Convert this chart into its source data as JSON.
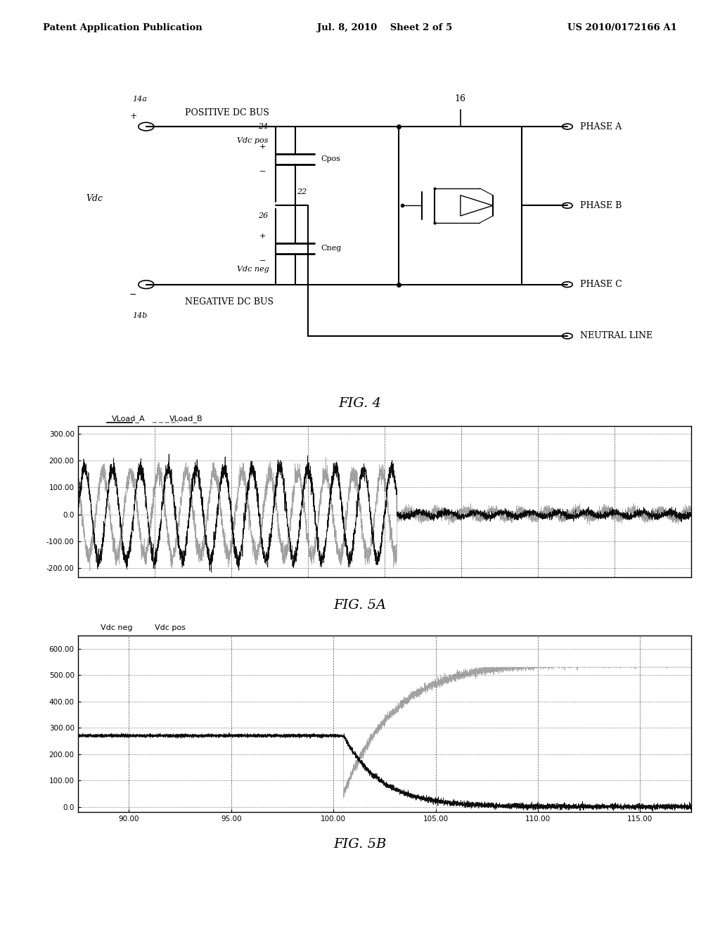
{
  "page_title_left": "Patent Application Publication",
  "page_title_center": "Jul. 8, 2010    Sheet 2 of 5",
  "page_title_right": "US 2010/0172166 A1",
  "fig4_title": "FIG. 4",
  "fig5a_title": "FIG. 5A",
  "fig5b_title": "FIG. 5B",
  "fig5a_legend": [
    "VLoad_A",
    "VLoad_B"
  ],
  "fig5b_legend": [
    "Vdc neg",
    "Vdc pos"
  ],
  "fig5a_yticks": [
    "-200.00",
    "-100.00",
    "0.0",
    "100.00",
    "200.00",
    "300.00"
  ],
  "fig5a_yvals": [
    -200,
    -100,
    0,
    100,
    200,
    300
  ],
  "fig5a_ylim": [
    -235,
    330
  ],
  "fig5b_yticks": [
    "0.0",
    "100.00",
    "200.00",
    "300.00",
    "400.00",
    "500.00",
    "600.00"
  ],
  "fig5b_yvals": [
    0,
    100,
    200,
    300,
    400,
    500,
    600
  ],
  "fig5b_ylim": [
    -20,
    650
  ],
  "fig5b_xticks": [
    "90.00",
    "95.00",
    "100.00",
    "105.00",
    "110.00",
    "115.00"
  ],
  "fig5b_xvals": [
    90,
    95,
    100,
    105,
    110,
    115
  ],
  "fig5b_xlim": [
    87.5,
    117.5
  ],
  "background_color": "#ffffff",
  "plot_bg": "#ffffff"
}
